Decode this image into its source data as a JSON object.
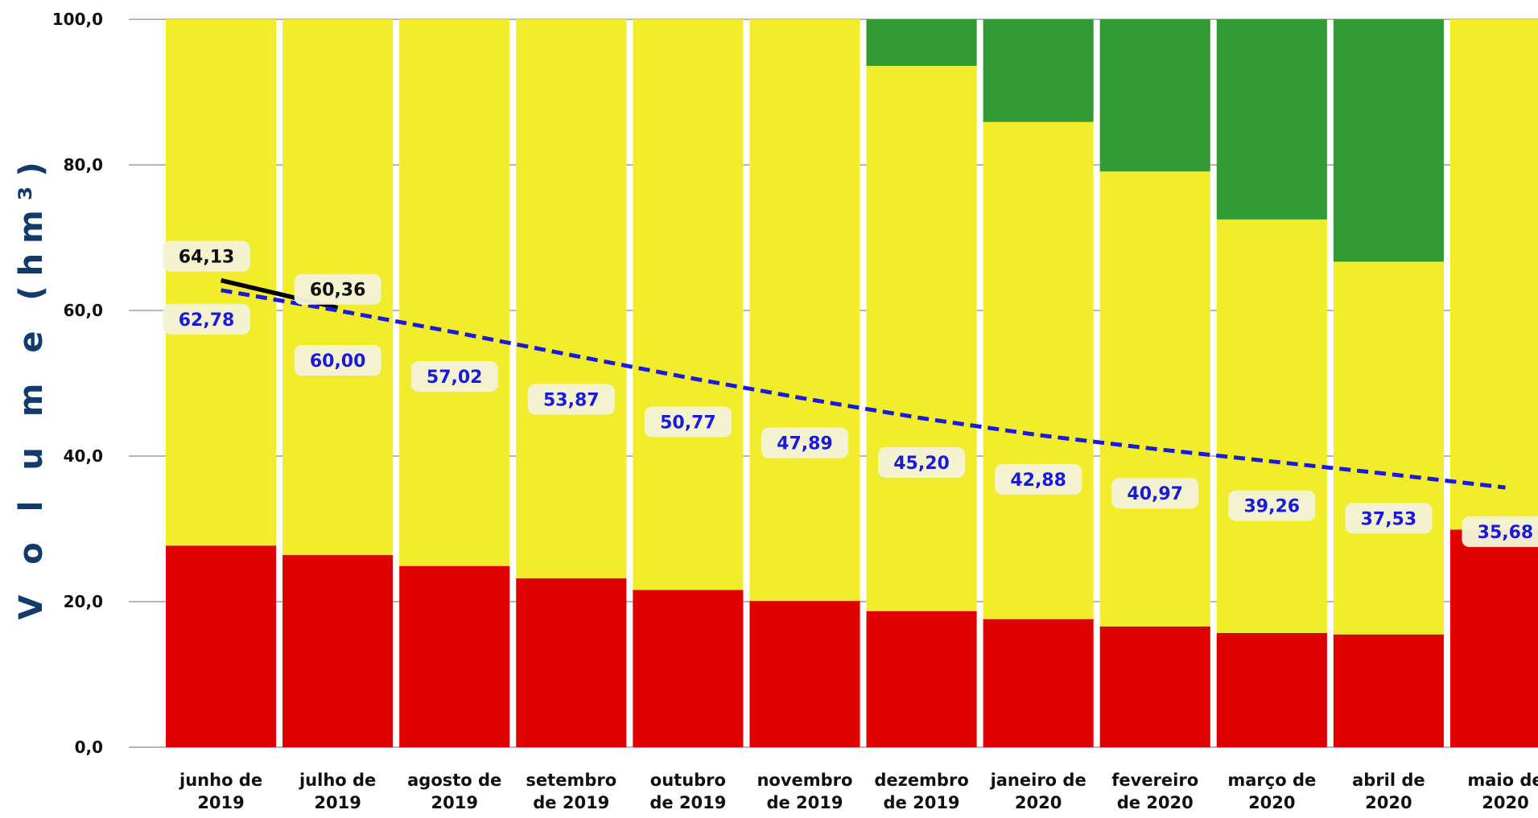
{
  "chart_data": {
    "type": "bar",
    "stacked": true,
    "categories": [
      [
        "junho de",
        "2019"
      ],
      [
        "julho de",
        "2019"
      ],
      [
        "agosto de",
        "2019"
      ],
      [
        "setembro",
        "de 2019"
      ],
      [
        "outubro",
        "de 2019"
      ],
      [
        "novembro",
        "de 2019"
      ],
      [
        "dezembro",
        "de 2019"
      ],
      [
        "janeiro de",
        "2020"
      ],
      [
        "fevereiro",
        "de 2020"
      ],
      [
        "março de",
        "2020"
      ],
      [
        "abril de",
        "2020"
      ],
      [
        "maio de",
        "2020"
      ]
    ],
    "ylabel": "V o l u m e (hm³)",
    "ylim": [
      0,
      100
    ],
    "yticks": [
      "0,0",
      "20,0",
      "40,0",
      "60,0",
      "80,0",
      "100,0"
    ],
    "grid": true,
    "series": [
      {
        "color": "#e00000",
        "values": [
          27.7,
          26.4,
          24.9,
          23.2,
          21.6,
          20.1,
          18.7,
          17.6,
          16.6,
          15.7,
          15.5,
          29.9
        ]
      },
      {
        "color": "#f2ed2c",
        "values": [
          72.3,
          73.6,
          75.1,
          76.8,
          78.4,
          79.9,
          74.9,
          68.3,
          62.5,
          56.8,
          51.2,
          70.1
        ]
      },
      {
        "color": "#339933",
        "values": [
          0,
          0,
          0,
          0,
          0,
          0,
          6.4,
          14.1,
          20.9,
          27.5,
          33.3,
          0
        ]
      }
    ],
    "lines": [
      {
        "color": "#000000",
        "style": "solid",
        "points": [
          [
            0,
            64.13
          ],
          [
            1,
            60.36
          ]
        ],
        "labels": [
          "64,13",
          "60,36"
        ]
      },
      {
        "color": "#1a1adb",
        "style": "dashed",
        "points": [
          [
            0,
            62.78
          ],
          [
            1,
            60.0
          ],
          [
            2,
            57.02
          ],
          [
            3,
            53.87
          ],
          [
            4,
            50.77
          ],
          [
            5,
            47.89
          ],
          [
            6,
            45.2
          ],
          [
            7,
            42.88
          ],
          [
            8,
            40.97
          ],
          [
            9,
            39.26
          ],
          [
            10,
            37.53
          ],
          [
            11,
            35.68
          ]
        ],
        "labels": [
          "62,78",
          "60,00",
          "57,02",
          "53,87",
          "50,77",
          "47,89",
          "45,20",
          "42,88",
          "40,97",
          "39,26",
          "37,53",
          "35,68"
        ]
      }
    ]
  }
}
